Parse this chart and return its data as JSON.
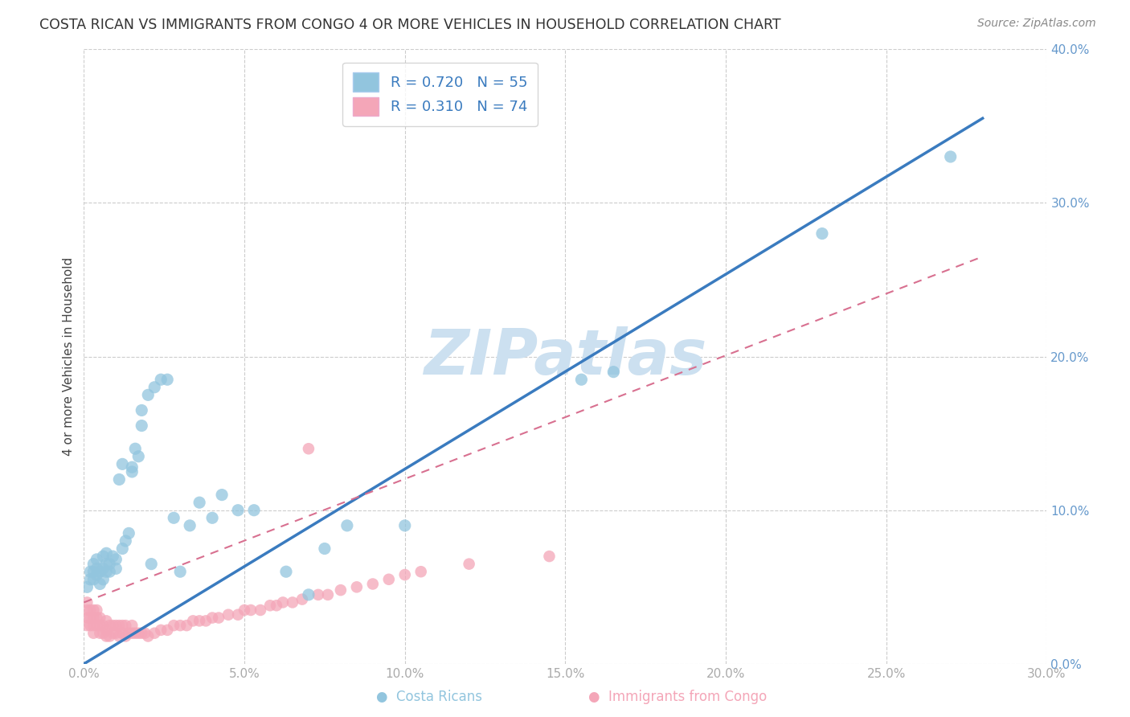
{
  "title": "COSTA RICAN VS IMMIGRANTS FROM CONGO 4 OR MORE VEHICLES IN HOUSEHOLD CORRELATION CHART",
  "source": "Source: ZipAtlas.com",
  "ylabel_label": "4 or more Vehicles in Household",
  "xlim": [
    0.0,
    0.3
  ],
  "ylim": [
    0.0,
    0.4
  ],
  "xticks": [
    0.0,
    0.05,
    0.1,
    0.15,
    0.2,
    0.25,
    0.3
  ],
  "yticks": [
    0.0,
    0.1,
    0.2,
    0.3,
    0.4
  ],
  "blue_R": 0.72,
  "blue_N": 55,
  "pink_R": 0.31,
  "pink_N": 74,
  "blue_color": "#92c5de",
  "pink_color": "#f4a6b8",
  "blue_line_color": "#3a7bbf",
  "pink_line_color": "#d87090",
  "grid_color": "#cccccc",
  "watermark_color": "#cce0f0",
  "background_color": "#ffffff",
  "blue_line_x0": 0.0,
  "blue_line_y0": 0.0,
  "blue_line_x1": 0.28,
  "blue_line_y1": 0.355,
  "pink_line_x0": 0.0,
  "pink_line_y0": 0.04,
  "pink_line_x1": 0.28,
  "pink_line_y1": 0.265,
  "blue_x": [
    0.001,
    0.002,
    0.002,
    0.003,
    0.003,
    0.003,
    0.004,
    0.004,
    0.004,
    0.005,
    0.005,
    0.006,
    0.006,
    0.006,
    0.007,
    0.007,
    0.007,
    0.008,
    0.008,
    0.009,
    0.01,
    0.01,
    0.011,
    0.012,
    0.012,
    0.013,
    0.014,
    0.015,
    0.015,
    0.016,
    0.017,
    0.018,
    0.018,
    0.02,
    0.021,
    0.022,
    0.024,
    0.026,
    0.028,
    0.03,
    0.033,
    0.036,
    0.04,
    0.043,
    0.048,
    0.053,
    0.063,
    0.07,
    0.075,
    0.082,
    0.1,
    0.155,
    0.165,
    0.23,
    0.27
  ],
  "blue_y": [
    0.05,
    0.055,
    0.06,
    0.055,
    0.06,
    0.065,
    0.058,
    0.062,
    0.068,
    0.052,
    0.06,
    0.055,
    0.062,
    0.07,
    0.06,
    0.065,
    0.072,
    0.06,
    0.065,
    0.07,
    0.062,
    0.068,
    0.12,
    0.075,
    0.13,
    0.08,
    0.085,
    0.125,
    0.128,
    0.14,
    0.135,
    0.155,
    0.165,
    0.175,
    0.065,
    0.18,
    0.185,
    0.185,
    0.095,
    0.06,
    0.09,
    0.105,
    0.095,
    0.11,
    0.1,
    0.1,
    0.06,
    0.045,
    0.075,
    0.09,
    0.09,
    0.185,
    0.19,
    0.28,
    0.33
  ],
  "pink_x": [
    0.001,
    0.001,
    0.001,
    0.001,
    0.002,
    0.002,
    0.002,
    0.003,
    0.003,
    0.003,
    0.003,
    0.004,
    0.004,
    0.004,
    0.005,
    0.005,
    0.005,
    0.006,
    0.006,
    0.007,
    0.007,
    0.007,
    0.008,
    0.008,
    0.009,
    0.009,
    0.01,
    0.01,
    0.011,
    0.011,
    0.012,
    0.012,
    0.013,
    0.013,
    0.014,
    0.015,
    0.015,
    0.016,
    0.017,
    0.018,
    0.019,
    0.02,
    0.022,
    0.024,
    0.026,
    0.028,
    0.03,
    0.032,
    0.034,
    0.036,
    0.038,
    0.04,
    0.042,
    0.045,
    0.048,
    0.05,
    0.052,
    0.055,
    0.058,
    0.06,
    0.062,
    0.065,
    0.068,
    0.07,
    0.073,
    0.076,
    0.08,
    0.085,
    0.09,
    0.095,
    0.1,
    0.105,
    0.12,
    0.145
  ],
  "pink_y": [
    0.025,
    0.03,
    0.035,
    0.04,
    0.025,
    0.03,
    0.035,
    0.02,
    0.025,
    0.03,
    0.035,
    0.025,
    0.03,
    0.035,
    0.02,
    0.025,
    0.03,
    0.02,
    0.025,
    0.018,
    0.022,
    0.028,
    0.018,
    0.025,
    0.02,
    0.025,
    0.02,
    0.025,
    0.018,
    0.025,
    0.02,
    0.025,
    0.018,
    0.025,
    0.02,
    0.02,
    0.025,
    0.02,
    0.02,
    0.02,
    0.02,
    0.018,
    0.02,
    0.022,
    0.022,
    0.025,
    0.025,
    0.025,
    0.028,
    0.028,
    0.028,
    0.03,
    0.03,
    0.032,
    0.032,
    0.035,
    0.035,
    0.035,
    0.038,
    0.038,
    0.04,
    0.04,
    0.042,
    0.14,
    0.045,
    0.045,
    0.048,
    0.05,
    0.052,
    0.055,
    0.058,
    0.06,
    0.065,
    0.07
  ]
}
